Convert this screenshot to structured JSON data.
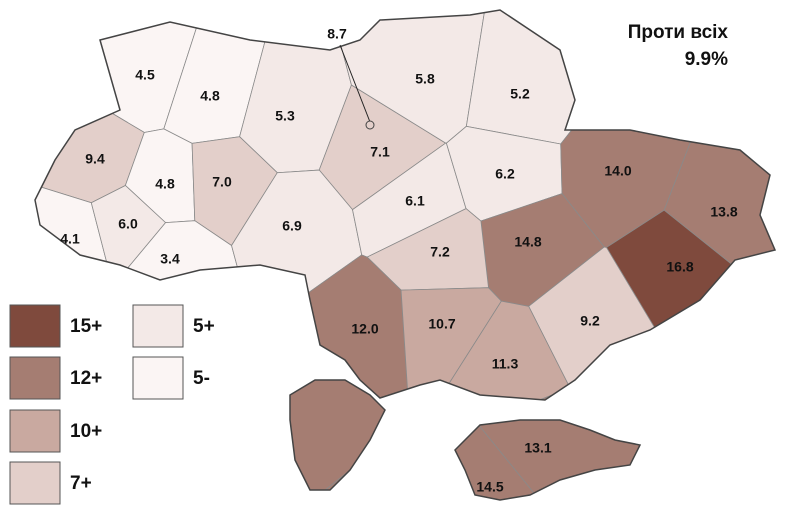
{
  "title": "Проти всіх",
  "total": "9.9%",
  "regions": [
    {
      "label": "4.5",
      "color": "#fbf5f4"
    },
    {
      "label": "4.8",
      "color": "#fbf5f4"
    },
    {
      "label": "5.3",
      "color": "#f3e9e7"
    },
    {
      "label": "8.7",
      "color": "#e3cfca"
    },
    {
      "label": "7.1",
      "color": "#e3cfca"
    },
    {
      "label": "5.8",
      "color": "#f3e9e7"
    },
    {
      "label": "5.2",
      "color": "#f3e9e7"
    },
    {
      "label": "9.4",
      "color": "#e3cfca"
    },
    {
      "label": "4.8",
      "color": "#fbf5f4"
    },
    {
      "label": "7.0",
      "color": "#e3cfca"
    },
    {
      "label": "4.1",
      "color": "#fbf5f4"
    },
    {
      "label": "6.0",
      "color": "#f3e9e7"
    },
    {
      "label": "3.4",
      "color": "#fbf5f4"
    },
    {
      "label": "6.9",
      "color": "#f3e9e7"
    },
    {
      "label": "6.1",
      "color": "#f3e9e7"
    },
    {
      "label": "6.2",
      "color": "#f3e9e7"
    },
    {
      "label": "14.0",
      "color": "#a57d72"
    },
    {
      "label": "13.8",
      "color": "#a57d72"
    },
    {
      "label": "16.8",
      "color": "#7f4a3d"
    },
    {
      "label": "14.8",
      "color": "#a57d72"
    },
    {
      "label": "7.2",
      "color": "#e3cfca"
    },
    {
      "label": "12.0",
      "color": "#a57d72"
    },
    {
      "label": "10.7",
      "color": "#c9a9a0"
    },
    {
      "label": "9.2",
      "color": "#e3cfca"
    },
    {
      "label": "11.3",
      "color": "#c9a9a0"
    },
    {
      "label": "13.1",
      "color": "#a57d72"
    },
    {
      "label": "14.5",
      "color": "#a57d72"
    }
  ],
  "legend": [
    {
      "label": "15+",
      "color": "#7f4a3d"
    },
    {
      "label": "12+",
      "color": "#a57d72"
    },
    {
      "label": "10+",
      "color": "#c9a9a0"
    },
    {
      "label": "7+",
      "color": "#e3cfca"
    },
    {
      "label": "5+",
      "color": "#f3e9e7"
    },
    {
      "label": "5-",
      "color": "#fbf5f4"
    }
  ]
}
